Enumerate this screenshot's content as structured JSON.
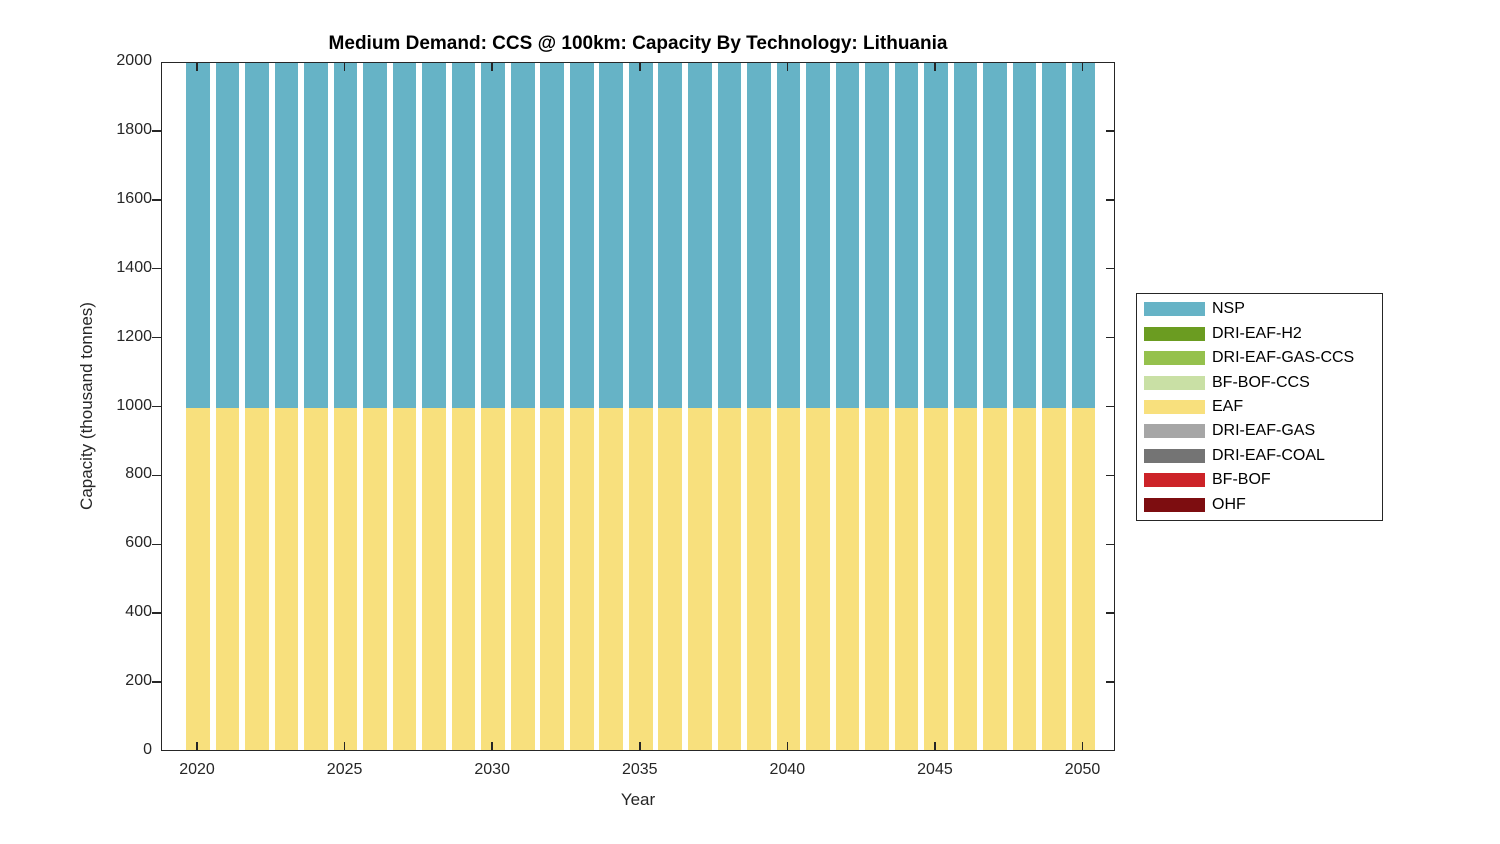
{
  "chart_data": {
    "type": "bar",
    "stacked": true,
    "title": "Medium Demand: CCS @ 100km: Capacity By Technology: Lithuania",
    "xlabel": "Year",
    "ylabel": "Capacity (thousand tonnes)",
    "x": [
      2020,
      2021,
      2022,
      2023,
      2024,
      2025,
      2026,
      2027,
      2028,
      2029,
      2030,
      2031,
      2032,
      2033,
      2034,
      2035,
      2036,
      2037,
      2038,
      2039,
      2040,
      2041,
      2042,
      2043,
      2044,
      2045,
      2046,
      2047,
      2048,
      2049,
      2050
    ],
    "x_ticks": [
      2020,
      2025,
      2030,
      2035,
      2040,
      2045,
      2050
    ],
    "y_ticks": [
      0,
      200,
      400,
      600,
      800,
      1000,
      1200,
      1400,
      1600,
      1800,
      2000
    ],
    "xlim": [
      2018.78,
      2051.1
    ],
    "ylim": [
      0,
      2000
    ],
    "bar_width_fraction": 0.8,
    "grid": false,
    "legend_position": "right-outside",
    "note": "NSP segments extend to the top of the axes (clipped at y=2000); visible NSP extent is 1000-2000 each year",
    "stack_bottom_to_top": [
      "EAF",
      "NSP"
    ],
    "series": [
      {
        "name": "NSP",
        "color": "#66b3c6",
        "values": [
          1000,
          1000,
          1000,
          1000,
          1000,
          1000,
          1000,
          1000,
          1000,
          1000,
          1000,
          1000,
          1000,
          1000,
          1000,
          1000,
          1000,
          1000,
          1000,
          1000,
          1000,
          1000,
          1000,
          1000,
          1000,
          1000,
          1000,
          1000,
          1000,
          1000,
          1000
        ]
      },
      {
        "name": "DRI-EAF-H2",
        "color": "#6b9c21",
        "values": [
          0,
          0,
          0,
          0,
          0,
          0,
          0,
          0,
          0,
          0,
          0,
          0,
          0,
          0,
          0,
          0,
          0,
          0,
          0,
          0,
          0,
          0,
          0,
          0,
          0,
          0,
          0,
          0,
          0,
          0,
          0
        ]
      },
      {
        "name": "DRI-EAF-GAS-CCS",
        "color": "#95c14d",
        "values": [
          0,
          0,
          0,
          0,
          0,
          0,
          0,
          0,
          0,
          0,
          0,
          0,
          0,
          0,
          0,
          0,
          0,
          0,
          0,
          0,
          0,
          0,
          0,
          0,
          0,
          0,
          0,
          0,
          0,
          0,
          0
        ]
      },
      {
        "name": "BF-BOF-CCS",
        "color": "#c9e0a5",
        "values": [
          0,
          0,
          0,
          0,
          0,
          0,
          0,
          0,
          0,
          0,
          0,
          0,
          0,
          0,
          0,
          0,
          0,
          0,
          0,
          0,
          0,
          0,
          0,
          0,
          0,
          0,
          0,
          0,
          0,
          0,
          0
        ]
      },
      {
        "name": "EAF",
        "color": "#f8e07d",
        "values": [
          1000,
          1000,
          1000,
          1000,
          1000,
          1000,
          1000,
          1000,
          1000,
          1000,
          1000,
          1000,
          1000,
          1000,
          1000,
          1000,
          1000,
          1000,
          1000,
          1000,
          1000,
          1000,
          1000,
          1000,
          1000,
          1000,
          1000,
          1000,
          1000,
          1000,
          1000
        ]
      },
      {
        "name": "DRI-EAF-GAS",
        "color": "#a6a6a6",
        "values": [
          0,
          0,
          0,
          0,
          0,
          0,
          0,
          0,
          0,
          0,
          0,
          0,
          0,
          0,
          0,
          0,
          0,
          0,
          0,
          0,
          0,
          0,
          0,
          0,
          0,
          0,
          0,
          0,
          0,
          0,
          0
        ]
      },
      {
        "name": "DRI-EAF-COAL",
        "color": "#747474",
        "values": [
          0,
          0,
          0,
          0,
          0,
          0,
          0,
          0,
          0,
          0,
          0,
          0,
          0,
          0,
          0,
          0,
          0,
          0,
          0,
          0,
          0,
          0,
          0,
          0,
          0,
          0,
          0,
          0,
          0,
          0,
          0
        ]
      },
      {
        "name": "BF-BOF",
        "color": "#cc2328",
        "values": [
          0,
          0,
          0,
          0,
          0,
          0,
          0,
          0,
          0,
          0,
          0,
          0,
          0,
          0,
          0,
          0,
          0,
          0,
          0,
          0,
          0,
          0,
          0,
          0,
          0,
          0,
          0,
          0,
          0,
          0,
          0
        ]
      },
      {
        "name": "OHF",
        "color": "#7d0d10",
        "values": [
          0,
          0,
          0,
          0,
          0,
          0,
          0,
          0,
          0,
          0,
          0,
          0,
          0,
          0,
          0,
          0,
          0,
          0,
          0,
          0,
          0,
          0,
          0,
          0,
          0,
          0,
          0,
          0,
          0,
          0,
          0
        ]
      }
    ],
    "axis_color": "#262626",
    "background_color": "#ffffff"
  }
}
